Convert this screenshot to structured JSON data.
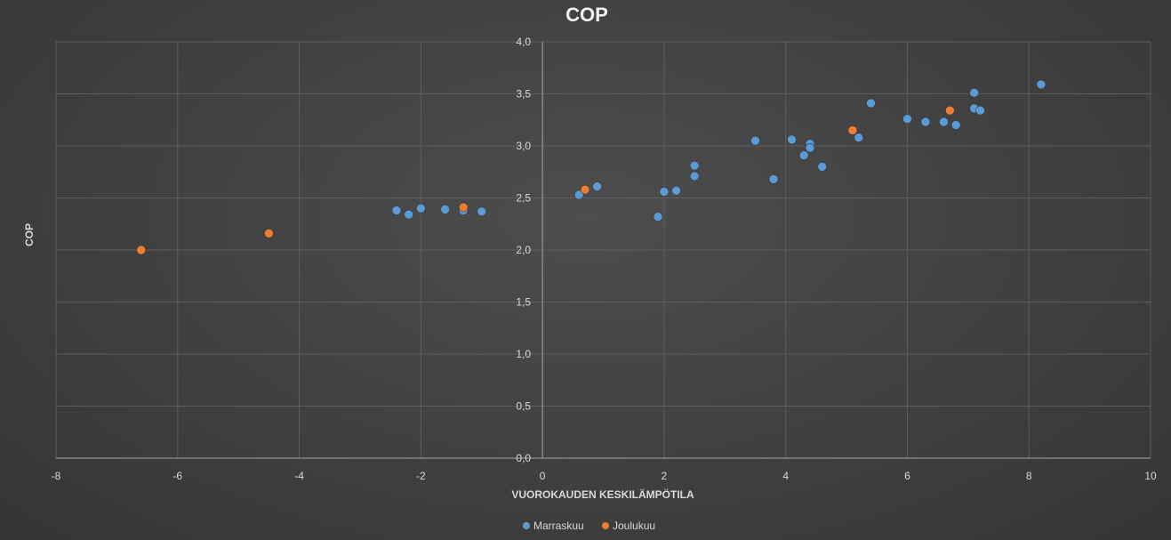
{
  "chart_data": {
    "type": "scatter",
    "title": "COP",
    "xlabel": "VUOROKAUDEN KESKILÄMPÖTILA",
    "ylabel": "COP",
    "xlim": [
      -8,
      10
    ],
    "ylim": [
      0,
      4
    ],
    "x_ticks": [
      -8,
      -6,
      -4,
      -2,
      0,
      2,
      4,
      6,
      8,
      10
    ],
    "x_tick_labels": [
      "-8",
      "-6",
      "-4",
      "-2",
      "0",
      "2",
      "4",
      "6",
      "8",
      "10"
    ],
    "y_ticks": [
      0,
      0.5,
      1,
      1.5,
      2,
      2.5,
      3,
      3.5,
      4
    ],
    "y_tick_labels": [
      "0,0",
      "0,5",
      "1,0",
      "1,5",
      "2,0",
      "2,5",
      "3,0",
      "3,5",
      "4,0"
    ],
    "grid": true,
    "legend_position": "bottom",
    "series": [
      {
        "name": "Marraskuu",
        "color": "#5b9bd5",
        "points": [
          {
            "x": -2.4,
            "y": 2.38
          },
          {
            "x": -2.2,
            "y": 2.34
          },
          {
            "x": -2.0,
            "y": 2.4
          },
          {
            "x": -1.6,
            "y": 2.39
          },
          {
            "x": -1.3,
            "y": 2.38
          },
          {
            "x": -1.0,
            "y": 2.37
          },
          {
            "x": 0.6,
            "y": 2.53
          },
          {
            "x": 0.9,
            "y": 2.61
          },
          {
            "x": 1.9,
            "y": 2.32
          },
          {
            "x": 2.0,
            "y": 2.56
          },
          {
            "x": 2.2,
            "y": 2.57
          },
          {
            "x": 2.5,
            "y": 2.81
          },
          {
            "x": 2.5,
            "y": 2.71
          },
          {
            "x": 3.5,
            "y": 3.05
          },
          {
            "x": 3.8,
            "y": 2.68
          },
          {
            "x": 4.1,
            "y": 3.06
          },
          {
            "x": 4.3,
            "y": 2.91
          },
          {
            "x": 4.4,
            "y": 3.02
          },
          {
            "x": 4.4,
            "y": 2.98
          },
          {
            "x": 4.6,
            "y": 2.8
          },
          {
            "x": 5.2,
            "y": 3.08
          },
          {
            "x": 5.4,
            "y": 3.41
          },
          {
            "x": 6.0,
            "y": 3.26
          },
          {
            "x": 6.3,
            "y": 3.23
          },
          {
            "x": 6.6,
            "y": 3.23
          },
          {
            "x": 6.8,
            "y": 3.2
          },
          {
            "x": 7.1,
            "y": 3.51
          },
          {
            "x": 7.1,
            "y": 3.36
          },
          {
            "x": 7.2,
            "y": 3.34
          },
          {
            "x": 8.2,
            "y": 3.59
          }
        ]
      },
      {
        "name": "Joulukuu",
        "color": "#ed7d31",
        "points": [
          {
            "x": -6.6,
            "y": 2.0
          },
          {
            "x": -4.5,
            "y": 2.16
          },
          {
            "x": -1.3,
            "y": 2.41
          },
          {
            "x": 0.7,
            "y": 2.58
          },
          {
            "x": 5.1,
            "y": 3.15
          },
          {
            "x": 6.7,
            "y": 3.34
          }
        ]
      }
    ]
  }
}
